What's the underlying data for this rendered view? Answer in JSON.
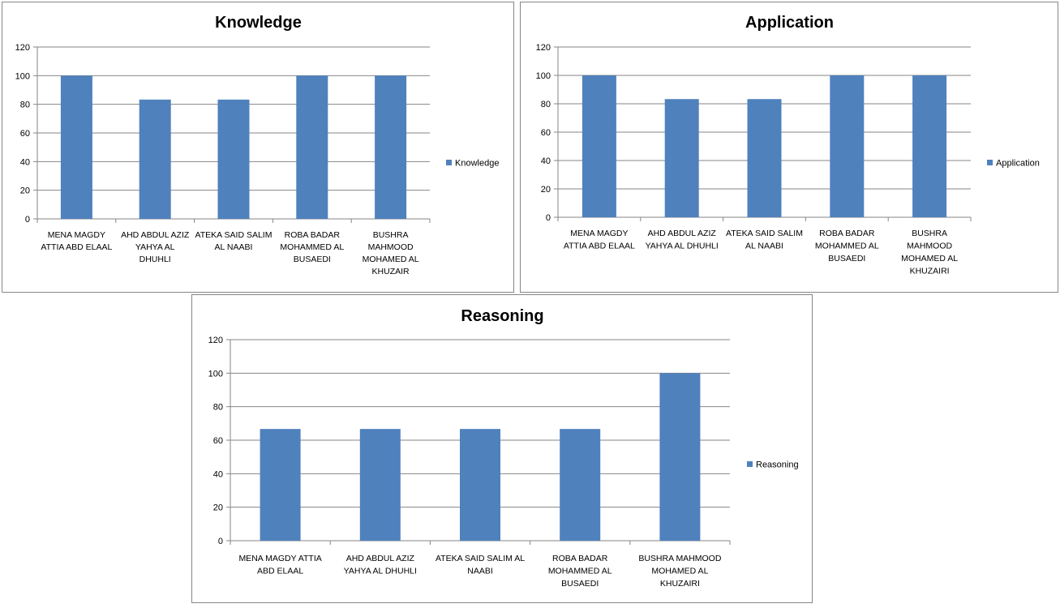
{
  "colors": {
    "bar": "#4f81bd",
    "grid": "#868686",
    "axis": "#868686"
  },
  "chart_data": [
    {
      "type": "bar",
      "title": "Knowledge",
      "legend": "Knowledge",
      "legend_position": "right",
      "ylim": [
        0,
        120
      ],
      "yticks": [
        0,
        20,
        40,
        60,
        80,
        100,
        120
      ],
      "grid": true,
      "categories": [
        [
          "MENA MAGDY",
          "ATTIA ABD ELAAL"
        ],
        [
          "AHD ABDUL  AZIZ",
          "YAHYA  AL",
          "DHUHLI"
        ],
        [
          "ATEKA SAID SALIM",
          "AL NAABI"
        ],
        [
          "ROBA BADAR",
          "MOHAMMED AL",
          "BUSAEDI"
        ],
        [
          "BUSHRA",
          "MAHMOOD",
          "MOHAMED AL",
          "KHUZAIR"
        ]
      ],
      "values": [
        100,
        83.3,
        83.3,
        100,
        100
      ]
    },
    {
      "type": "bar",
      "title": "Application",
      "legend": "Application",
      "legend_position": "right",
      "ylim": [
        0,
        120
      ],
      "yticks": [
        0,
        20,
        40,
        60,
        80,
        100,
        120
      ],
      "grid": true,
      "categories": [
        [
          "MENA MAGDY",
          "ATTIA ABD ELAAL"
        ],
        [
          "AHD ABDUL  AZIZ",
          "YAHYA  AL DHUHLI"
        ],
        [
          "ATEKA SAID SALIM",
          "AL NAABI"
        ],
        [
          "ROBA BADAR",
          "MOHAMMED AL",
          "BUSAEDI"
        ],
        [
          "BUSHRA",
          "MAHMOOD",
          "MOHAMED AL",
          "KHUZAIRI"
        ]
      ],
      "values": [
        100,
        83.3,
        83.3,
        100,
        100
      ]
    },
    {
      "type": "bar",
      "title": "Reasoning",
      "legend": "Reasoning",
      "legend_position": "right",
      "ylim": [
        0,
        120
      ],
      "yticks": [
        0,
        20,
        40,
        60,
        80,
        100,
        120
      ],
      "grid": true,
      "categories": [
        [
          "MENA MAGDY ATTIA",
          "ABD ELAAL"
        ],
        [
          "AHD ABDUL  AZIZ",
          "YAHYA  AL DHUHLI"
        ],
        [
          "ATEKA SAID SALIM AL",
          "NAABI"
        ],
        [
          "ROBA BADAR",
          "MOHAMMED AL",
          "BUSAEDI"
        ],
        [
          "BUSHRA MAHMOOD",
          "MOHAMED AL",
          "KHUZAIRI"
        ]
      ],
      "values": [
        66.7,
        66.7,
        66.7,
        66.7,
        100
      ]
    }
  ]
}
